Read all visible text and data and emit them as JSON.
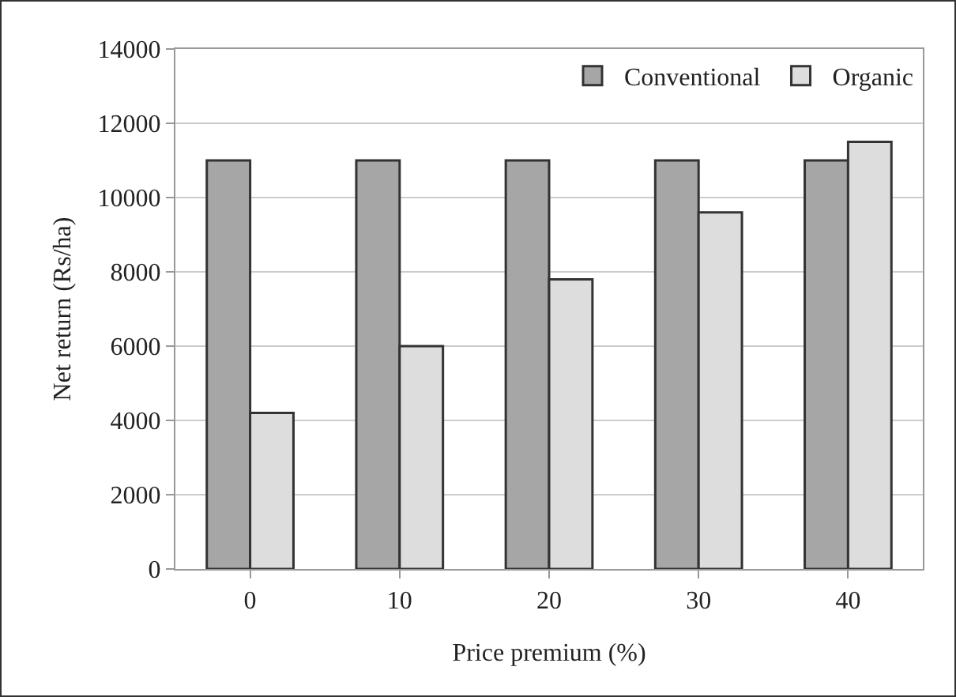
{
  "chart_data": {
    "type": "bar",
    "xlabel": "Price premium (%)",
    "ylabel": "Net return (Rs/ha)",
    "categories": [
      "0",
      "10",
      "20",
      "30",
      "40"
    ],
    "series": [
      {
        "name": "Conventional",
        "color": "#a6a6a6",
        "values": [
          11000,
          11000,
          11000,
          11000,
          11000
        ]
      },
      {
        "name": "Organic",
        "color": "#dddddd",
        "values": [
          4200,
          6000,
          7800,
          9600,
          11500
        ]
      }
    ],
    "ylim": [
      0,
      14000
    ],
    "yticks": [
      0,
      2000,
      4000,
      6000,
      8000,
      10000,
      12000,
      14000
    ],
    "grid": "y",
    "legend": "top right"
  }
}
